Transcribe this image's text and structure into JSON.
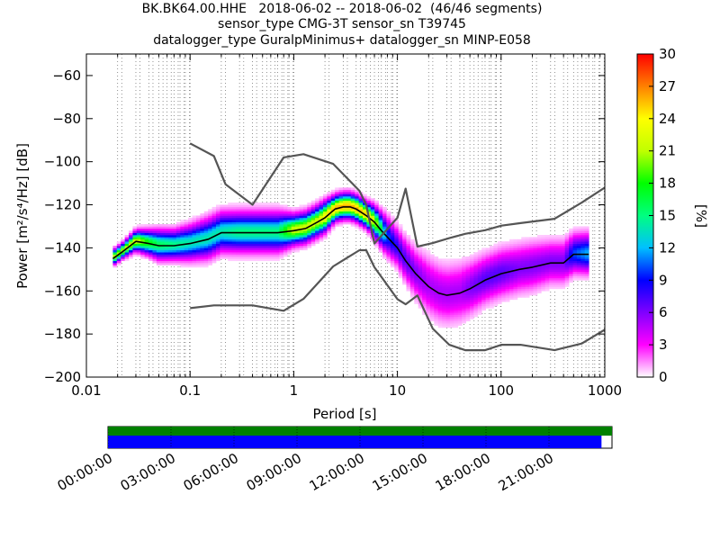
{
  "title": {
    "line1": "BK.BK64.00.HHE   2018-06-02 -- 2018-06-02  (46/46 segments)",
    "line2": "sensor_type CMG-3T sensor_sn T39745",
    "line3": "datalogger_type GuralpMinimus+ datalogger_sn MINP-E058"
  },
  "chart_data": [
    {
      "type": "heatmap",
      "xlabel": "Period [s]",
      "ylabel": "Power [m²/s⁴/Hz] [dB]",
      "x_scale": "log",
      "xlim": [
        0.01,
        1000
      ],
      "ylim": [
        -200,
        -50
      ],
      "x_ticks": [
        0.01,
        0.1,
        1,
        10,
        100,
        1000
      ],
      "x_tick_labels": [
        "0.01",
        "0.1",
        "1",
        "10",
        "100",
        "1000"
      ],
      "y_ticks": [
        -200,
        -180,
        -160,
        -140,
        -120,
        -100,
        -80,
        -60
      ],
      "y_tick_labels": [
        "−200",
        "−180",
        "−160",
        "−140",
        "−120",
        "−100",
        "−80",
        "−60"
      ],
      "grid": "dotted vertical lines at log-spaced periods",
      "colorbar": {
        "label": "[%]",
        "min": 0,
        "max": 30,
        "ticks": [
          0,
          3,
          6,
          9,
          12,
          15,
          18,
          21,
          24,
          27,
          30
        ],
        "tick_labels": [
          "0",
          "3",
          "6",
          "9",
          "12",
          "15",
          "18",
          "21",
          "24",
          "27",
          "30"
        ],
        "colormap": [
          "#ffffff",
          "#ff00ff",
          "#8000ff",
          "#0000ff",
          "#00c0ff",
          "#00ff80",
          "#00ff00",
          "#c0ff00",
          "#ffff00",
          "#ff8000",
          "#ff0000"
        ]
      },
      "series": [
        {
          "role": "ppsd-mode",
          "color": "#000000",
          "x": [
            0.018,
            0.022,
            0.03,
            0.04,
            0.05,
            0.07,
            0.1,
            0.15,
            0.2,
            0.3,
            0.5,
            0.7,
            1,
            1.3,
            1.7,
            2,
            2.5,
            3,
            3.5,
            4,
            5,
            6,
            7,
            8,
            10,
            12,
            15,
            20,
            25,
            30,
            40,
            50,
            70,
            100,
            150,
            200,
            300,
            400,
            500,
            700
          ],
          "y": [
            -145,
            -142,
            -137,
            -138,
            -139,
            -139,
            -138,
            -136,
            -133,
            -133,
            -133,
            -133,
            -132,
            -131,
            -128,
            -126,
            -122,
            -121,
            -121,
            -122,
            -125,
            -128,
            -132,
            -135,
            -140,
            -146,
            -152,
            -158,
            -161,
            -162,
            -161,
            -159,
            -155,
            -152,
            -150,
            -149,
            -147,
            -147,
            -143,
            -143
          ],
          "spread_db": [
            3,
            3,
            4,
            5,
            6,
            6,
            7,
            8,
            8,
            8,
            8,
            8,
            6,
            6,
            6,
            6,
            5,
            5,
            5,
            5,
            5,
            6,
            7,
            8,
            8,
            9,
            10,
            12,
            12,
            12,
            12,
            11,
            10,
            10,
            10,
            10,
            9,
            9,
            8,
            8
          ],
          "peak_pct": [
            21,
            21,
            22,
            18,
            16,
            15,
            14,
            14,
            14,
            15,
            15,
            15,
            22,
            22,
            22,
            24,
            26,
            26,
            26,
            26,
            25,
            22,
            16,
            10,
            8,
            7,
            6,
            5,
            5,
            5,
            5,
            6,
            7,
            7,
            6,
            6,
            6,
            6,
            10,
            12
          ]
        },
        {
          "role": "NHNM",
          "color": "#555555",
          "x": [
            0.1,
            0.17,
            0.22,
            0.4,
            0.8,
            1.24,
            2.4,
            4.3,
            5,
            6,
            10,
            12,
            15.6,
            21.9,
            31.6,
            45,
            70,
            101,
            154,
            328,
            600,
            1000
          ],
          "y": [
            -91.5,
            -97.4,
            -110.5,
            -120.0,
            -98.0,
            -96.5,
            -101.0,
            -113.5,
            -120.0,
            -138.0,
            -126.0,
            -112.5,
            -139.4,
            -137.8,
            -135.5,
            -133.5,
            -131.8,
            -129.7,
            -128.5,
            -126.5,
            -119.0,
            -112.0
          ]
        },
        {
          "role": "NLNM",
          "color": "#555555",
          "x": [
            0.1,
            0.17,
            0.4,
            0.8,
            1.24,
            2.4,
            4.3,
            5,
            6,
            10,
            12,
            15.6,
            21.9,
            31.6,
            45,
            70,
            101,
            154,
            328,
            600,
            1000
          ],
          "y": [
            -168.0,
            -166.7,
            -166.7,
            -169.2,
            -163.7,
            -148.6,
            -141.1,
            -141.1,
            -149.0,
            -163.8,
            -166.2,
            -162.1,
            -177.5,
            -185.0,
            -187.5,
            -187.5,
            -185.0,
            -185.0,
            -187.5,
            -184.4,
            -178.0
          ]
        }
      ]
    },
    {
      "type": "timeline",
      "x_tick_labels": [
        "00:00:00",
        "03:00:00",
        "06:00:00",
        "09:00:00",
        "12:00:00",
        "15:00:00",
        "18:00:00",
        "21:00:00"
      ],
      "xlim_hours": [
        0,
        24
      ],
      "bars": [
        {
          "role": "data-availability",
          "color": "#008000",
          "start_hour": 0,
          "end_hour": 24
        },
        {
          "role": "used-in-ppsd",
          "color": "#0000ff",
          "start_hour": 0,
          "end_hour": 23.5
        }
      ]
    }
  ]
}
